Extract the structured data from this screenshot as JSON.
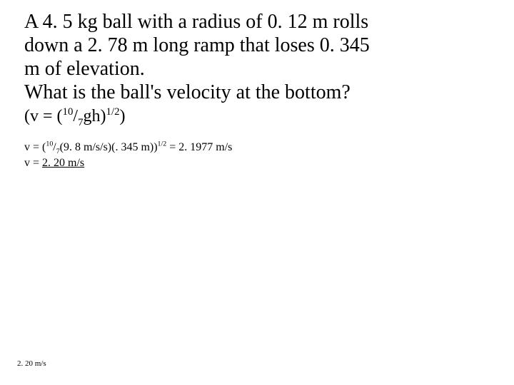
{
  "problem": {
    "line1": "A 4. 5 kg ball with a radius of 0. 12 m rolls",
    "line2": "down a 2. 78 m long ramp that loses 0. 345",
    "line3": "m of elevation.",
    "line4": "What is the ball's velocity at the bottom?"
  },
  "formula": {
    "prefix": "(v = (",
    "num": "10",
    "slash": "/",
    "den": "7",
    "mid": "gh)",
    "exp": "1/2",
    "suffix": ")"
  },
  "work": {
    "eq_prefix": "v = (",
    "eq_num": "10",
    "eq_slash": "/",
    "eq_den": "7",
    "eq_mid": "(9. 8 m/s/s)(. 345 m))",
    "eq_exp": "1/2",
    "eq_suffix": " = 2. 1977 m/s",
    "ans_label": "v = ",
    "ans_value": "2. 20 m/s"
  },
  "footer": "2. 20 m/s"
}
